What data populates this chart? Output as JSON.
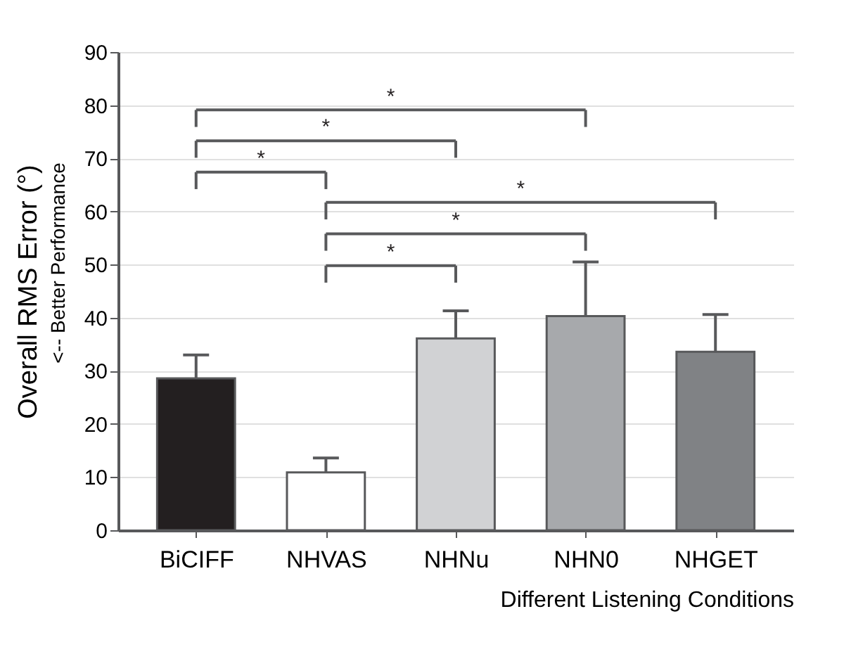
{
  "chart_data": {
    "type": "bar",
    "categories": [
      "BiCIFF",
      "NHVAS",
      "NHNu",
      "NHN0",
      "NHGET"
    ],
    "values": [
      28.6,
      10.9,
      36.1,
      40.3,
      33.6
    ],
    "colors": [
      "#231f20",
      "#ffffff",
      "#d1d2d4",
      "#a7a9ac",
      "#808285"
    ],
    "errors": [
      [
        28.6,
        33.0
      ],
      [
        10.9,
        13.6
      ],
      [
        36.1,
        41.3
      ],
      [
        40.3,
        50.5
      ],
      [
        33.6,
        40.6
      ]
    ],
    "ylim": [
      0,
      90
    ],
    "yticks": [
      0,
      10,
      20,
      30,
      40,
      50,
      60,
      70,
      80,
      90
    ],
    "grid": "y",
    "ylabel": "Overall RMS Error (°)",
    "xlabel": "Different Listening Conditions",
    "annotations": [
      "<-- Better Performance",
      "*",
      "*",
      "*",
      "*",
      "*",
      "*"
    ]
  }
}
